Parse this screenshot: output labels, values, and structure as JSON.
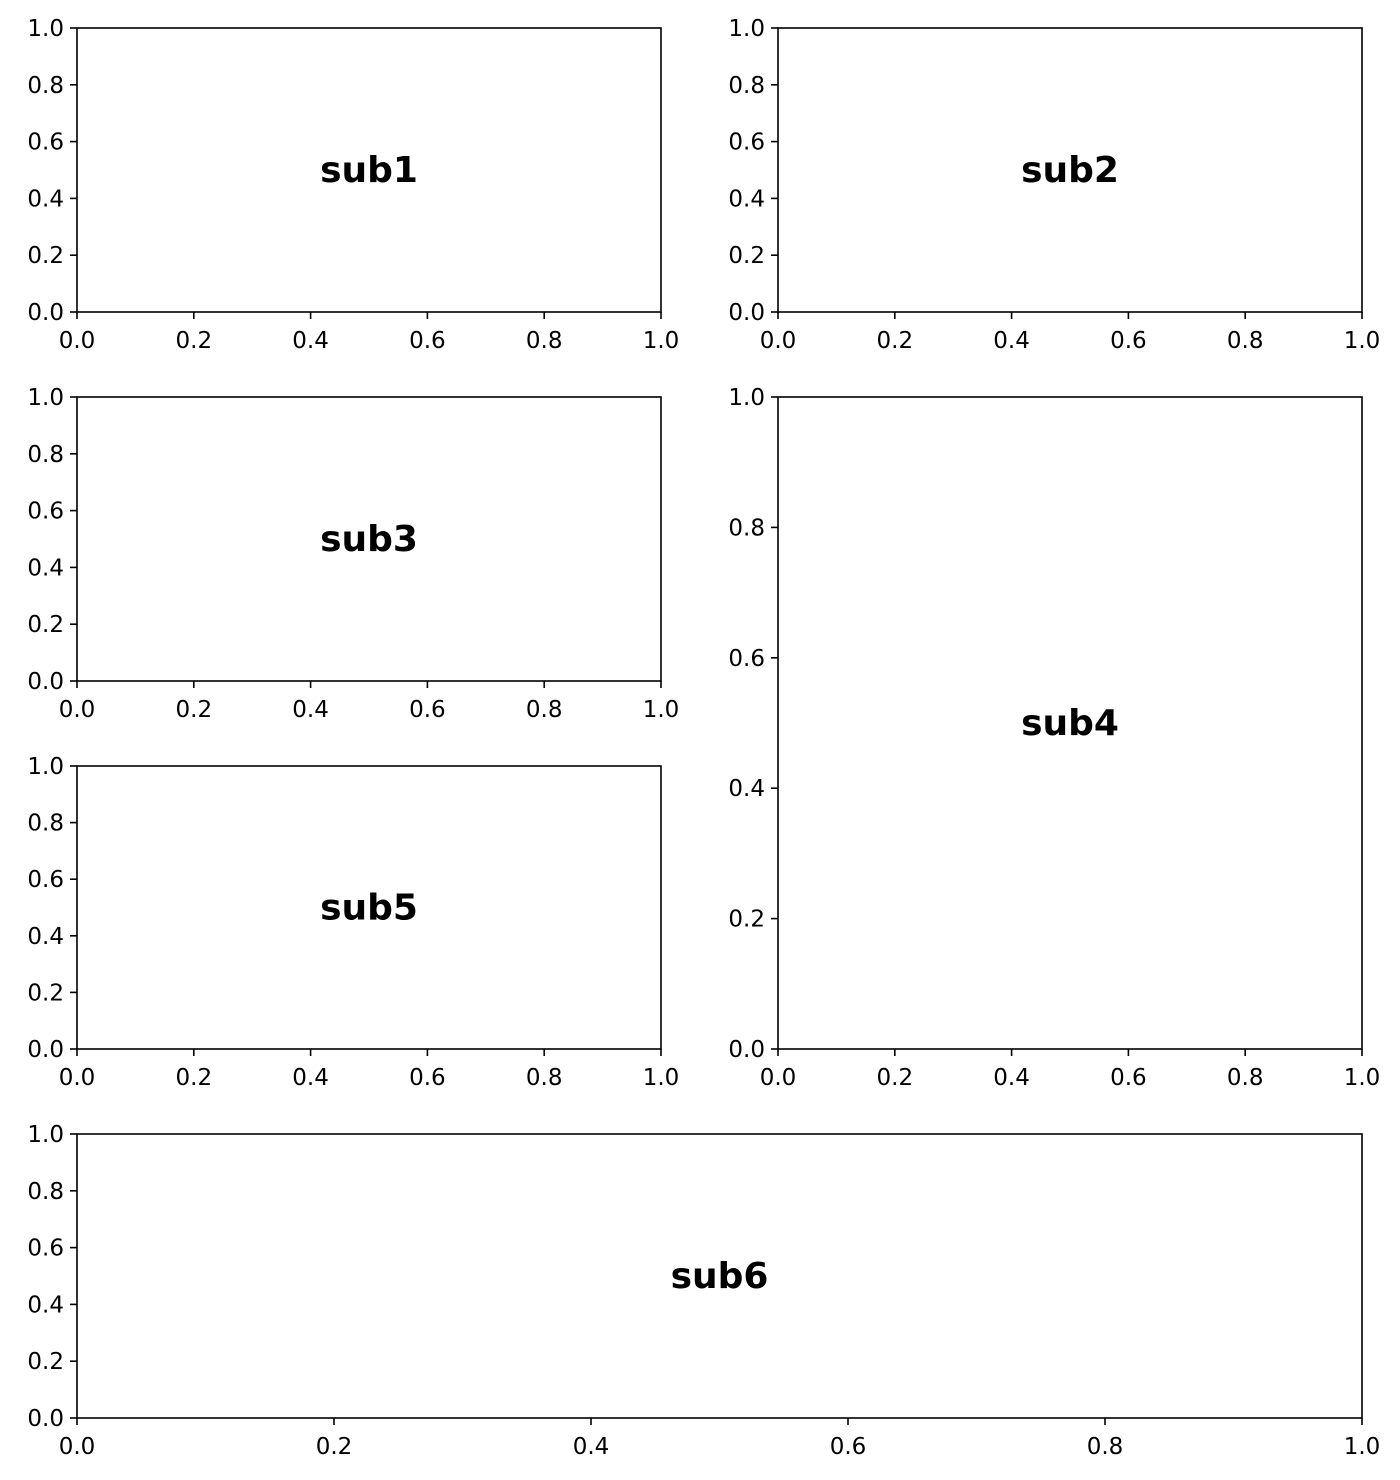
{
  "chart_data": [
    {
      "type": "scatter",
      "title": "",
      "annotation": "sub1",
      "xlim": [
        0,
        1
      ],
      "ylim": [
        0,
        1
      ],
      "xticks": [
        "0.0",
        "0.2",
        "0.4",
        "0.6",
        "0.8",
        "1.0"
      ],
      "yticks": [
        "0.0",
        "0.2",
        "0.4",
        "0.6",
        "0.8",
        "1.0"
      ],
      "grid": false,
      "series": []
    },
    {
      "type": "scatter",
      "title": "",
      "annotation": "sub2",
      "xlim": [
        0,
        1
      ],
      "ylim": [
        0,
        1
      ],
      "xticks": [
        "0.0",
        "0.2",
        "0.4",
        "0.6",
        "0.8",
        "1.0"
      ],
      "yticks": [
        "0.0",
        "0.2",
        "0.4",
        "0.6",
        "0.8",
        "1.0"
      ],
      "grid": false,
      "series": []
    },
    {
      "type": "scatter",
      "title": "",
      "annotation": "sub3",
      "xlim": [
        0,
        1
      ],
      "ylim": [
        0,
        1
      ],
      "xticks": [
        "0.0",
        "0.2",
        "0.4",
        "0.6",
        "0.8",
        "1.0"
      ],
      "yticks": [
        "0.0",
        "0.2",
        "0.4",
        "0.6",
        "0.8",
        "1.0"
      ],
      "grid": false,
      "series": []
    },
    {
      "type": "scatter",
      "title": "",
      "annotation": "sub4",
      "xlim": [
        0,
        1
      ],
      "ylim": [
        0,
        1
      ],
      "xticks": [
        "0.0",
        "0.2",
        "0.4",
        "0.6",
        "0.8",
        "1.0"
      ],
      "yticks": [
        "0.0",
        "0.2",
        "0.4",
        "0.6",
        "0.8",
        "1.0"
      ],
      "grid": false,
      "series": []
    },
    {
      "type": "scatter",
      "title": "",
      "annotation": "sub5",
      "xlim": [
        0,
        1
      ],
      "ylim": [
        0,
        1
      ],
      "xticks": [
        "0.0",
        "0.2",
        "0.4",
        "0.6",
        "0.8",
        "1.0"
      ],
      "yticks": [
        "0.0",
        "0.2",
        "0.4",
        "0.6",
        "0.8",
        "1.0"
      ],
      "grid": false,
      "series": []
    },
    {
      "type": "scatter",
      "title": "",
      "annotation": "sub6",
      "xlim": [
        0,
        1
      ],
      "ylim": [
        0,
        1
      ],
      "xticks": [
        "0.0",
        "0.2",
        "0.4",
        "0.6",
        "0.8",
        "1.0"
      ],
      "yticks": [
        "0.0",
        "0.2",
        "0.4",
        "0.6",
        "0.8",
        "1.0"
      ],
      "grid": false,
      "series": []
    }
  ]
}
